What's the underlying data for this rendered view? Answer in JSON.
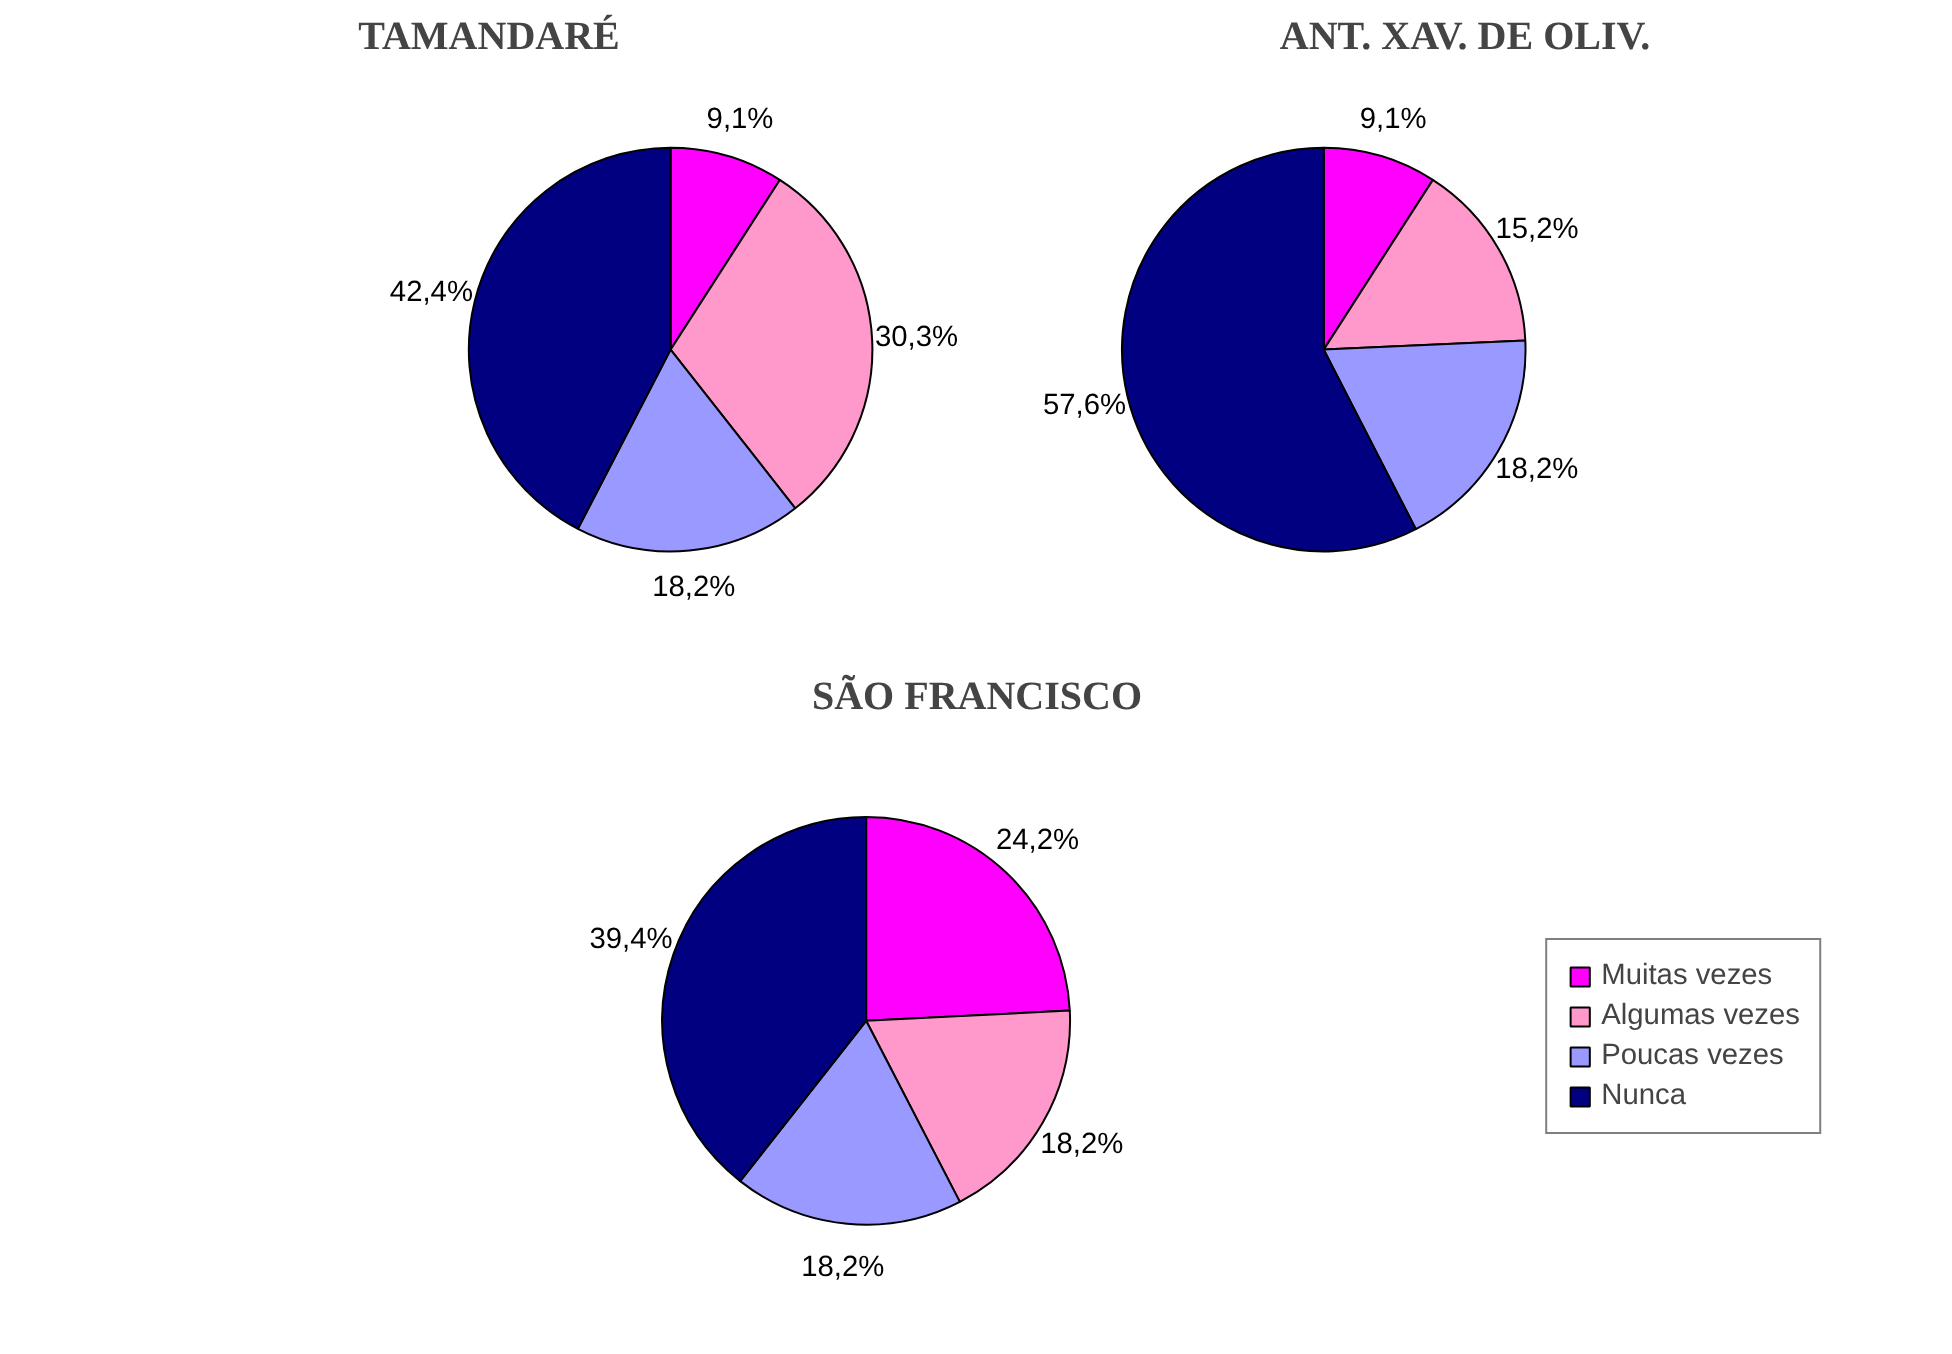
{
  "chart_data": [
    {
      "type": "pie",
      "title": "TAMANDARÉ",
      "categories": [
        "Muitas vezes",
        "Algumas vezes",
        "Poucas vezes",
        "Nunca"
      ],
      "values": [
        9.1,
        30.3,
        18.2,
        42.4
      ],
      "value_labels": [
        "9,1%",
        "30,3%",
        "18,2%",
        "42,4%"
      ],
      "colors": [
        "#ff00ff",
        "#ff99cc",
        "#9999ff",
        "#000080"
      ],
      "legend": "right"
    },
    {
      "type": "pie",
      "title": "ANT. XAV. DE OLIV.",
      "categories": [
        null,
        null,
        null,
        null
      ],
      "values": [
        9.1,
        15.2,
        18.2,
        57.6
      ],
      "value_labels": [
        "9,1%",
        "15,2%",
        "18,2%",
        "57,6%"
      ],
      "colors": [
        "#ff00ff",
        "#ff99cc",
        "#9999ff",
        "#000080"
      ]
    },
    {
      "type": "pie",
      "title": "SÃO FRANCISCO",
      "categories": [
        null,
        null,
        null,
        null
      ],
      "values": [
        24.2,
        18.2,
        18.2,
        39.4
      ],
      "value_labels": [
        "24,2%",
        "18,2%",
        "18,2%",
        "39,4%"
      ],
      "colors": [
        "#ff00ff",
        "#ff99cc",
        "#9999ff",
        "#000080"
      ]
    }
  ]
}
